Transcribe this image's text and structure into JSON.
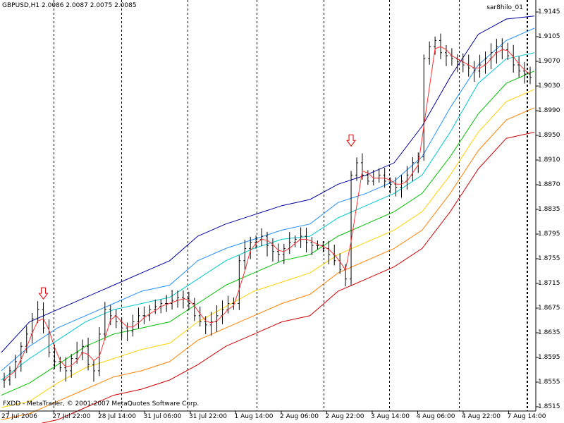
{
  "header": {
    "symbol_line": "GBPUSD,H1  2.0086 2.0087 2.0075 2.0085",
    "indicator_name": "sar8hilo_01",
    "copyright": "FXDD - MetaTrader, © 2001-2007 MetaQuotes Software Corp."
  },
  "chart_data": {
    "type": "candlestick",
    "title": "GBPUSD,H1",
    "last_quote": {
      "open": 2.0086,
      "high": 2.0087,
      "low": 2.0075,
      "close": 2.0085
    },
    "ylim": [
      1.85,
      1.915
    ],
    "y_ticks": [
      "1.9145",
      "1.9105",
      "1.9070",
      "1.9030",
      "1.8990",
      "1.8950",
      "1.8910",
      "1.8870",
      "1.8835",
      "1.8795",
      "1.8755",
      "1.8715",
      "1.8675",
      "1.8635",
      "1.8595",
      "1.8555",
      "1.8515"
    ],
    "x_ticks": [
      "27 Jul 2006",
      "27 Jul 22:00",
      "28 Jul 14:00",
      "31 Jul 06:00",
      "31 Jul 22:00",
      "1 Aug 14:00",
      "2 Aug 06:00",
      "2 Aug 22:00",
      "3 Aug 14:00",
      "4 Aug 06:00",
      "4 Aug 22:00",
      "7 Aug 14:00"
    ],
    "session_separators": [
      "27 Jul 22:00",
      "28 Jul 14:00",
      "31 Jul 06:00",
      "31 Jul 22:00",
      "1 Aug 14:00",
      "2 Aug 06:00",
      "2 Aug 22:00",
      "3 Aug 14:00",
      "4 Aug 06:00",
      "4 Aug 22:00",
      "7 Aug 14:00"
    ],
    "price_close_approx": [
      1.8545,
      1.856,
      1.8575,
      1.86,
      1.862,
      1.8645,
      1.866,
      1.863,
      1.859,
      1.8575,
      1.8565,
      1.856,
      1.858,
      1.859,
      1.86,
      1.857,
      1.856,
      1.862,
      1.866,
      1.865,
      1.864,
      1.863,
      1.8625,
      1.864,
      1.865,
      1.865,
      1.866,
      1.8665,
      1.867,
      1.867,
      1.8675,
      1.868,
      1.8678,
      1.867,
      1.865,
      1.864,
      1.8635,
      1.864,
      1.865,
      1.866,
      1.867,
      1.867,
      1.874,
      1.876,
      1.877,
      1.8775,
      1.878,
      1.8765,
      1.8755,
      1.875,
      1.876,
      1.877,
      1.8775,
      1.878,
      1.877,
      1.8765,
      1.8765,
      1.876,
      1.875,
      1.874,
      1.8725,
      1.871,
      1.888,
      1.89,
      1.888,
      1.887,
      1.8875,
      1.888,
      1.887,
      1.8865,
      1.886,
      1.887,
      1.888,
      1.89,
      1.891,
      1.907,
      1.909,
      1.91,
      1.908,
      1.9075,
      1.907,
      1.9065,
      1.906,
      1.9055,
      1.905,
      1.906,
      1.907,
      1.908,
      1.909,
      1.9085,
      1.9075,
      1.906,
      1.905,
      1.9045,
      1.904
    ],
    "bands": [
      {
        "color": "#0000a0",
        "values": [
          1.859,
          1.864,
          1.866,
          1.868,
          1.87,
          1.872,
          1.874,
          1.878,
          1.88,
          1.8815,
          1.883,
          1.884,
          1.8865,
          1.888,
          1.89,
          1.896,
          1.904,
          1.911,
          1.9135,
          1.914
        ]
      },
      {
        "color": "#2090ff",
        "values": [
          1.856,
          1.86,
          1.863,
          1.865,
          1.867,
          1.869,
          1.87,
          1.874,
          1.876,
          1.8775,
          1.879,
          1.88,
          1.8835,
          1.885,
          1.887,
          1.891,
          1.899,
          1.906,
          1.91,
          1.912
        ]
      },
      {
        "color": "#00c8d0",
        "values": [
          1.8545,
          1.858,
          1.861,
          1.864,
          1.866,
          1.867,
          1.868,
          1.871,
          1.874,
          1.876,
          1.8775,
          1.878,
          1.881,
          1.883,
          1.885,
          1.888,
          1.895,
          1.903,
          1.907,
          1.908
        ]
      },
      {
        "color": "#00c000",
        "values": [
          1.852,
          1.854,
          1.857,
          1.86,
          1.862,
          1.863,
          1.864,
          1.867,
          1.87,
          1.872,
          1.874,
          1.875,
          1.878,
          1.88,
          1.882,
          1.885,
          1.891,
          1.898,
          1.903,
          1.905
        ]
      },
      {
        "color": "#ffd000",
        "values": [
          1.85,
          1.851,
          1.854,
          1.8565,
          1.858,
          1.8595,
          1.8605,
          1.864,
          1.8665,
          1.869,
          1.8705,
          1.872,
          1.875,
          1.877,
          1.879,
          1.882,
          1.888,
          1.895,
          1.9,
          1.902
        ]
      },
      {
        "color": "#ff8000",
        "values": [
          1.848,
          1.849,
          1.851,
          1.853,
          1.855,
          1.856,
          1.8575,
          1.861,
          1.863,
          1.865,
          1.867,
          1.8685,
          1.872,
          1.874,
          1.876,
          1.879,
          1.885,
          1.892,
          1.897,
          1.899
        ]
      },
      {
        "color": "#d00000",
        "values": [
          1.846,
          1.847,
          1.848,
          1.85,
          1.852,
          1.853,
          1.8545,
          1.857,
          1.86,
          1.862,
          1.864,
          1.865,
          1.869,
          1.871,
          1.873,
          1.876,
          1.882,
          1.889,
          1.894,
          1.895
        ]
      }
    ],
    "signal_arrows": [
      {
        "label": "down-arrow",
        "bar_index": 7,
        "price": 1.8675
      },
      {
        "label": "down-arrow",
        "bar_index": 62,
        "price": 1.8925
      }
    ],
    "colors": {
      "candles": "#000000",
      "fast_ma": "#ff3030",
      "separator": "#000000",
      "arrow": "#e00000"
    }
  }
}
